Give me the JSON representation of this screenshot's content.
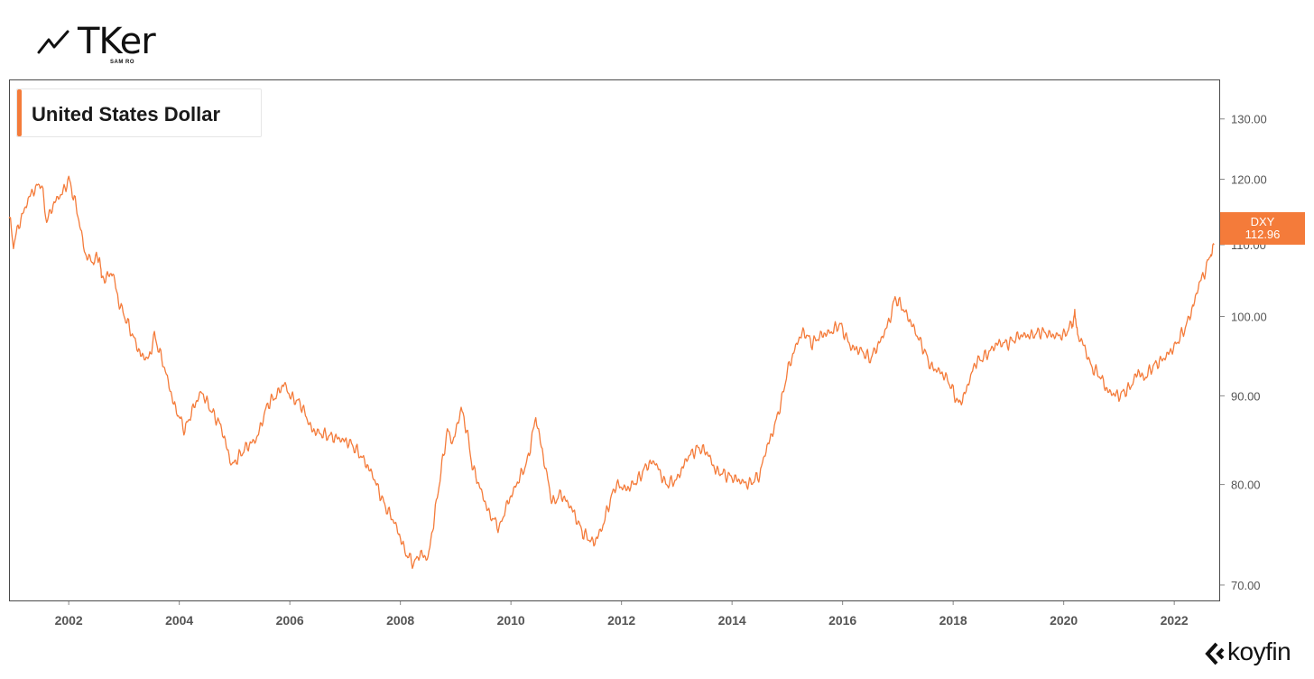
{
  "brand": {
    "name": "TKer",
    "subtitle": "SAM RO",
    "logo_icon": "trend-line-icon"
  },
  "footer": {
    "logo": "koyfin",
    "logo_icon": "koyfin-chevron-icon"
  },
  "colors": {
    "series": "#f47b3a",
    "axis_text": "#555555",
    "frame": "#4a4a4a"
  },
  "chart_data": {
    "type": "line",
    "title": "United States Dollar",
    "series": [
      {
        "name": "DXY",
        "last_value": "112.96",
        "x": [
          2000.92,
          2001.0,
          2001.1,
          2001.3,
          2001.5,
          2001.6,
          2001.75,
          2001.9,
          2002.0,
          2002.1,
          2002.2,
          2002.3,
          2002.45,
          2002.55,
          2002.6,
          2002.8,
          2002.9,
          2003.1,
          2003.3,
          2003.45,
          2003.55,
          2003.75,
          2003.9,
          2004.1,
          2004.25,
          2004.4,
          2004.6,
          2004.75,
          2004.95,
          2005.2,
          2005.4,
          2005.6,
          2005.75,
          2005.9,
          2006.0,
          2006.2,
          2006.4,
          2006.6,
          2006.9,
          2007.1,
          2007.3,
          2007.5,
          2007.7,
          2007.9,
          2008.1,
          2008.25,
          2008.35,
          2008.5,
          2008.6,
          2008.7,
          2008.85,
          2008.95,
          2009.1,
          2009.2,
          2009.3,
          2009.45,
          2009.6,
          2009.8,
          2009.9,
          2010.1,
          2010.3,
          2010.45,
          2010.6,
          2010.75,
          2010.9,
          2011.1,
          2011.3,
          2011.5,
          2011.65,
          2011.75,
          2011.9,
          2012.1,
          2012.3,
          2012.45,
          2012.6,
          2012.8,
          2013.0,
          2013.2,
          2013.4,
          2013.55,
          2013.7,
          2013.9,
          2014.1,
          2014.3,
          2014.5,
          2014.6,
          2014.75,
          2014.9,
          2015.0,
          2015.2,
          2015.3,
          2015.45,
          2015.6,
          2015.8,
          2015.95,
          2016.15,
          2016.35,
          2016.5,
          2016.7,
          2016.85,
          2016.95,
          2017.1,
          2017.25,
          2017.45,
          2017.6,
          2017.75,
          2017.9,
          2018.1,
          2018.2,
          2018.4,
          2018.6,
          2018.8,
          2019.0,
          2019.2,
          2019.4,
          2019.6,
          2019.8,
          2020.0,
          2020.15,
          2020.2,
          2020.25,
          2020.35,
          2020.5,
          2020.65,
          2020.8,
          2021.0,
          2021.2,
          2021.35,
          2021.45,
          2021.6,
          2021.8,
          2022.0,
          2022.2,
          2022.35,
          2022.45,
          2022.55,
          2022.65,
          2022.72
        ],
        "y": [
          114.5,
          110.0,
          113.0,
          117.5,
          119.5,
          113.5,
          116.5,
          118.0,
          120.0,
          117.0,
          113.0,
          108.5,
          107.5,
          108.5,
          105.0,
          106.0,
          102.0,
          98.5,
          95.0,
          94.5,
          97.5,
          93.0,
          89.0,
          86.0,
          88.5,
          90.5,
          88.0,
          86.5,
          82.0,
          84.0,
          85.0,
          89.0,
          90.0,
          91.5,
          90.0,
          89.0,
          86.0,
          85.5,
          85.0,
          84.5,
          83.0,
          81.0,
          78.0,
          76.0,
          73.0,
          72.0,
          73.0,
          72.5,
          76.0,
          80.0,
          86.0,
          84.5,
          88.5,
          86.0,
          82.0,
          79.5,
          77.0,
          75.5,
          77.5,
          80.0,
          82.5,
          87.5,
          82.5,
          78.0,
          79.0,
          77.5,
          75.0,
          74.0,
          75.5,
          77.5,
          80.0,
          79.5,
          80.5,
          82.0,
          82.5,
          80.0,
          80.5,
          83.0,
          84.0,
          83.5,
          81.5,
          81.0,
          80.5,
          80.0,
          81.0,
          83.5,
          86.0,
          89.5,
          93.0,
          97.0,
          98.0,
          96.5,
          97.5,
          98.0,
          99.0,
          96.0,
          95.5,
          94.5,
          97.0,
          99.5,
          102.5,
          101.0,
          99.0,
          96.0,
          93.5,
          93.0,
          92.0,
          89.0,
          90.0,
          94.0,
          95.0,
          96.5,
          96.5,
          97.5,
          97.5,
          98.0,
          97.5,
          97.5,
          99.0,
          100.5,
          97.5,
          96.5,
          93.5,
          92.5,
          90.5,
          90.0,
          91.0,
          93.0,
          92.0,
          93.5,
          94.5,
          96.0,
          98.5,
          101.5,
          104.5,
          106.0,
          108.5,
          110.0
        ]
      }
    ],
    "x_ticks": [
      "2002",
      "2004",
      "2006",
      "2008",
      "2010",
      "2012",
      "2014",
      "2016",
      "2018",
      "2020",
      "2022"
    ],
    "x_tick_values": [
      2002,
      2004,
      2006,
      2008,
      2010,
      2012,
      2014,
      2016,
      2018,
      2020,
      2022
    ],
    "y_ticks": [
      "70.00",
      "80.00",
      "90.00",
      "100.00",
      "110.00",
      "120.00",
      "130.00"
    ],
    "y_tick_values": [
      70,
      80,
      90,
      100,
      110,
      120,
      130
    ],
    "xlim": [
      2000.92,
      2022.83
    ],
    "ylim": [
      68.5,
      137
    ],
    "y_scale": "log",
    "grid": false,
    "legend": "top-left"
  }
}
